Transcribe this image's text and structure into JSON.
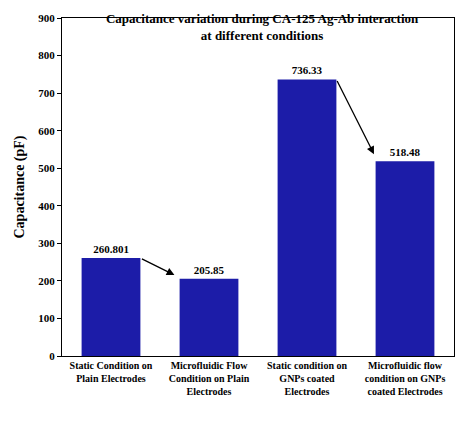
{
  "chart_data": {
    "type": "bar",
    "title": "Capacitance variation during CA-125 Ag-Ab interaction at different conditions",
    "y_label": "Capacitance (pF)",
    "categories": [
      "Static Condition on Plain Electrodes",
      "Microfluidic Flow Condition on Plain Electrodes",
      "Static condition on GNPs coated Electrodes",
      "Microfluidic flow condition on GNPs coated Electrodes"
    ],
    "values": [
      260.801,
      205.85,
      736.33,
      518.48
    ],
    "color": "#1c1ca8",
    "ylim": [
      0,
      900
    ],
    "yticks": [
      0,
      100,
      200,
      300,
      400,
      500,
      600,
      700,
      800,
      900
    ],
    "grid": false,
    "data_labels": true
  }
}
